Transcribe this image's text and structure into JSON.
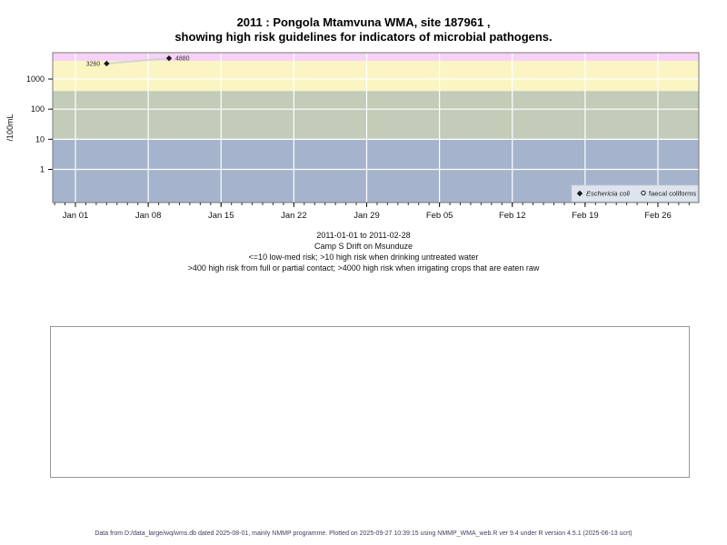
{
  "page": {
    "title_line1": "2011 : Pongola Mtamvuna WMA, site 187961 ,",
    "title_line2": "showing high risk guidelines for indicators of microbial pathogens.",
    "captions": [
      "2011-01-01 to 2011-02-28",
      "Camp S Drift on Msunduze",
      "<=10 low-med risk; >10 high risk when drinking untreated water",
      ">400 high risk from full or partial contact; >4000 high risk when irrigating crops that are eaten raw"
    ],
    "footer": "Data from D:/data_large/wq/wms.db dated 2025-08-01, mainly NMMP programme. Plotted on 2025-09-27 10:39:15 using NMMP_WMA_web.R ver 9.4 under R version 4.5.1 (2025-06-13 ucrt)"
  },
  "chart_data": {
    "type": "scatter",
    "title": "2011 : Pongola Mtamvuna WMA, site 187961 , showing high risk guidelines for indicators of microbial pathogens.",
    "xlabel": "",
    "ylabel": "/100mL",
    "x_axis": {
      "range_days": [
        -2.2,
        59.9
      ],
      "major_ticks": [
        {
          "day": 0,
          "label": "Jan 01"
        },
        {
          "day": 7,
          "label": "Jan 08"
        },
        {
          "day": 14,
          "label": "Jan 15"
        },
        {
          "day": 21,
          "label": "Jan 22"
        },
        {
          "day": 28,
          "label": "Jan 29"
        },
        {
          "day": 35,
          "label": "Feb 05"
        },
        {
          "day": 42,
          "label": "Feb 12"
        },
        {
          "day": 49,
          "label": "Feb 19"
        },
        {
          "day": 56,
          "label": "Feb 26"
        }
      ],
      "minor_tick_every_days": 1
    },
    "y_axis": {
      "scale": "log10",
      "ticks": [
        1,
        10,
        100,
        1000
      ],
      "range": [
        0.078,
        7500
      ]
    },
    "grid": {
      "color": "#ffffff",
      "on": true
    },
    "bands": [
      {
        "name": "high-risk-irrigation-band",
        "from": 4000,
        "to": 7500,
        "color": "#f6d2f6"
      },
      {
        "name": "high-risk-contact-band",
        "from": 400,
        "to": 4000,
        "color": "#fbf5c4"
      },
      {
        "name": "high-risk-drinking-band",
        "from": 10,
        "to": 400,
        "color": "#c3ccb8"
      },
      {
        "name": "low-med-risk-band",
        "from": 0.078,
        "to": 10,
        "color": "#a5b3cc"
      }
    ],
    "series": [
      {
        "name": "Eschericia coli",
        "symbol": "filled-diamond",
        "symbol_color": "#1a1a1a",
        "line_color": "#d4d4d4",
        "points": [
          {
            "day": 3,
            "value": 3260,
            "label": "3260",
            "label_side": "left"
          },
          {
            "day": 9,
            "value": 4880,
            "label": "4880",
            "label_side": "right"
          }
        ]
      },
      {
        "name": "faecal coliforms",
        "symbol": "open-circle",
        "symbol_color": "#1a1a1a",
        "points": []
      }
    ],
    "legend": {
      "position": "inside-bottom-right",
      "background": "#dee4ee",
      "entries": [
        "Eschericia coli",
        "faecal coliforms"
      ]
    }
  }
}
